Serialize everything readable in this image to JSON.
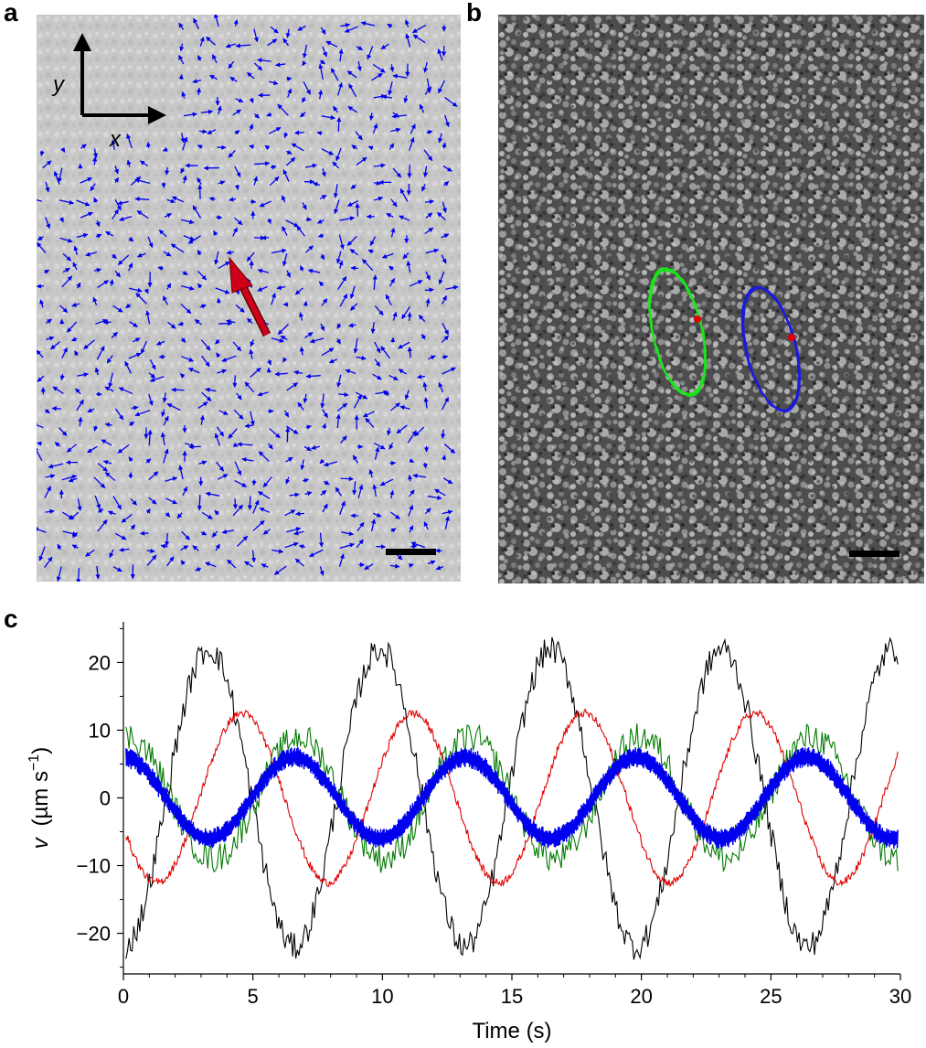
{
  "panels": {
    "a": "a",
    "b": "b",
    "c": "c"
  },
  "panel_a": {
    "axis_x_label": "x",
    "axis_y_label": "y",
    "vector_color": "#0000ee",
    "highlight_vector_color": "#d0001a",
    "scale_bar_color": "#000000"
  },
  "panel_b": {
    "ellipse_green_color": "#19e619",
    "ellipse_blue_color": "#1a1ae0",
    "marker_color": "#e00000",
    "scale_bar_color": "#000000"
  },
  "chart_data": {
    "type": "line",
    "xlabel": "Time (s)",
    "ylabel_prefix": "v",
    "ylabel_units": "(µm s",
    "ylabel_exp": "−1",
    "ylabel_close": ")",
    "xlim": [
      0,
      30
    ],
    "ylim": [
      -26,
      26
    ],
    "xticks": [
      0,
      5,
      10,
      15,
      20,
      25,
      30
    ],
    "yticks": [
      -20,
      -10,
      0,
      10,
      20
    ],
    "ytick_labels": [
      "−20",
      "−10",
      "0",
      "10",
      "20"
    ],
    "grid": false,
    "period": 6.6,
    "series": [
      {
        "color": "#000000",
        "amplitude": 22,
        "phase_deg": -90,
        "noise": 2.0,
        "start": -20,
        "end": 20,
        "role": "black"
      },
      {
        "color": "#e00000",
        "amplitude": 12.5,
        "phase_deg": -160,
        "noise": 0.6,
        "start": -12,
        "end": 10.5,
        "role": "red"
      },
      {
        "color": "#007a00",
        "amplitude": 9,
        "phase_deg": 80,
        "noise": 2.2,
        "start": 5,
        "end": -5,
        "role": "green"
      },
      {
        "color": "#0000ee",
        "amplitude": 6,
        "phase_deg": 90,
        "noise": 1.4,
        "start": 4,
        "end": -4,
        "role": "blue"
      }
    ]
  }
}
